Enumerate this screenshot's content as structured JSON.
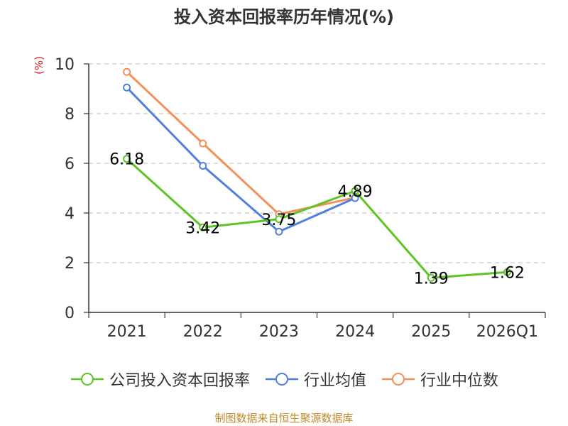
{
  "chart_data": {
    "type": "line",
    "title": "投入资本回报率历年情况(%)",
    "xlabel": "",
    "ylabel": "(%)",
    "categories": [
      "2021",
      "2022",
      "2023",
      "2024",
      "2025",
      "2026Q1"
    ],
    "ylim": [
      0,
      10
    ],
    "yticks": [
      0,
      2,
      4,
      6,
      8,
      10
    ],
    "grid": true,
    "series": [
      {
        "name": "公司投入资本回报率",
        "color": "#5ec424",
        "values": [
          6.18,
          3.42,
          3.75,
          4.89,
          1.39,
          1.62
        ],
        "labels": [
          "6.18",
          "3.42",
          "3.75",
          "4.89",
          "1.39",
          "1.62"
        ]
      },
      {
        "name": "行业均值",
        "color": "#4f80e0",
        "values": [
          9.05,
          5.9,
          3.25,
          4.6,
          null,
          null
        ]
      },
      {
        "name": "行业中位数",
        "color": "#f4905a",
        "values": [
          9.68,
          6.8,
          3.95,
          4.62,
          null,
          null
        ]
      }
    ],
    "legend_position": "bottom"
  },
  "source_text": "制图数据来自恒生聚源数据库"
}
